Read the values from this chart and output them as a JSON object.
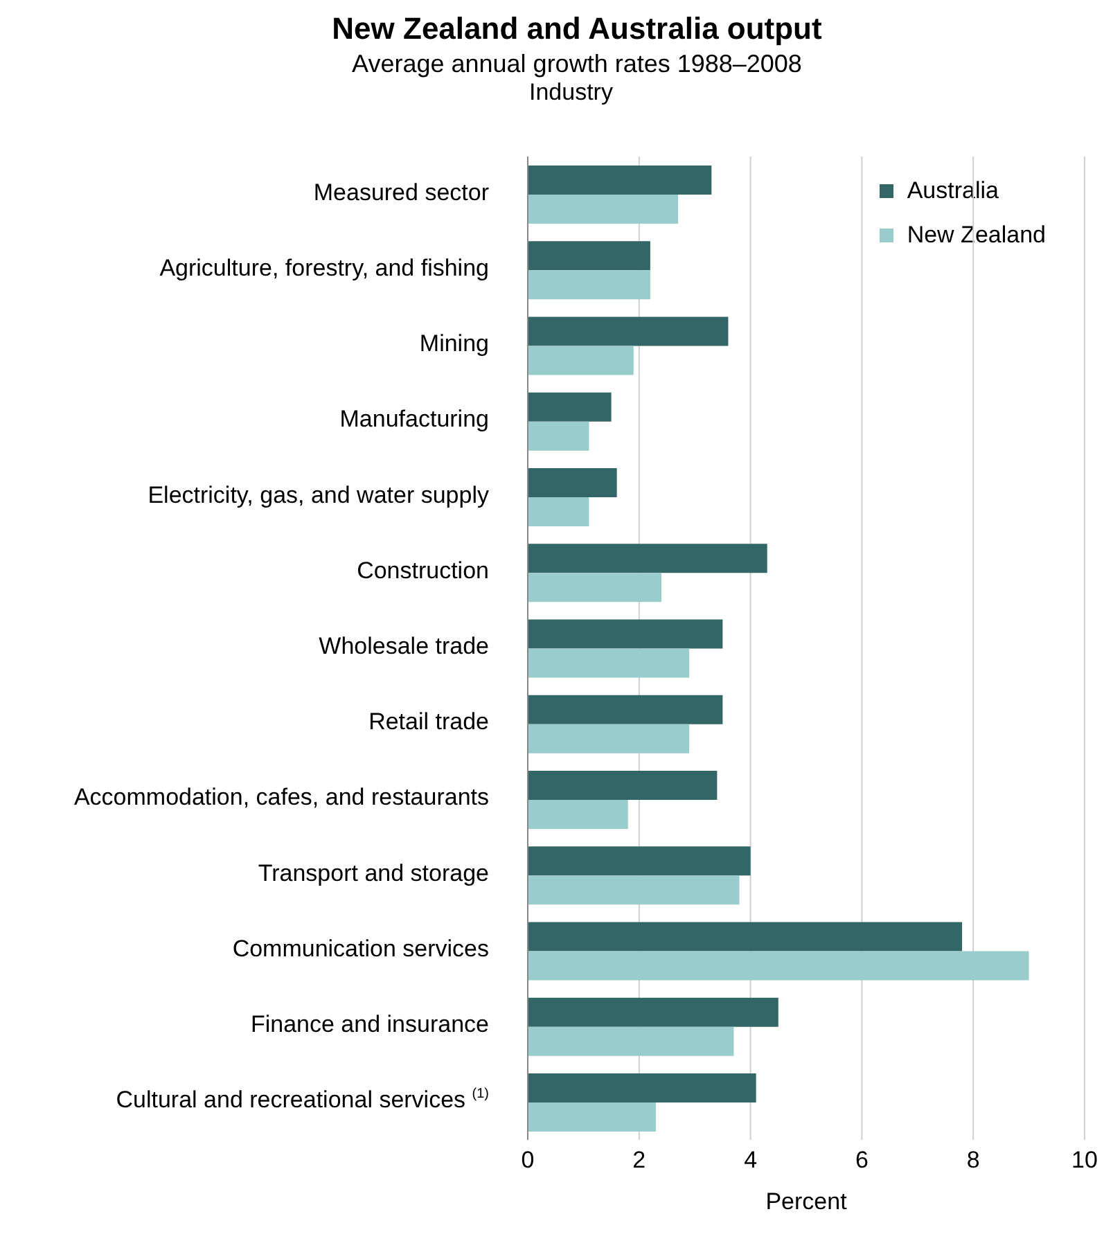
{
  "chart_data": {
    "type": "bar",
    "orientation": "horizontal",
    "title": "New Zealand and Australia output",
    "subtitle": "Average annual growth rates 1988–2008",
    "ylabel": "Industry",
    "xlabel": "Percent",
    "categories": [
      "Measured sector",
      "Agriculture, forestry, and fishing",
      "Mining",
      "Manufacturing",
      "Electricity, gas, and water supply",
      "Construction",
      "Wholesale trade",
      "Retail trade",
      "Accommodation, cafes, and restaurants",
      "Transport and storage",
      "Communication services",
      "Finance and insurance",
      "Cultural and recreational services $^{(1)}$"
    ],
    "series": [
      {
        "name": "Australia",
        "color": "#336666",
        "values": [
          3.3,
          2.2,
          3.6,
          1.5,
          1.6,
          4.3,
          3.5,
          3.5,
          3.4,
          4.0,
          7.8,
          4.5,
          4.1
        ]
      },
      {
        "name": "New Zealand",
        "color": "#99cccc",
        "values": [
          2.7,
          2.2,
          1.9,
          1.1,
          1.1,
          2.4,
          2.9,
          2.9,
          1.8,
          3.8,
          9.0,
          3.7,
          2.3
        ]
      }
    ],
    "xlim": [
      0,
      10
    ],
    "xticks": [
      0,
      2,
      4,
      6,
      8,
      10
    ],
    "grid": "x",
    "legend": "top right"
  }
}
